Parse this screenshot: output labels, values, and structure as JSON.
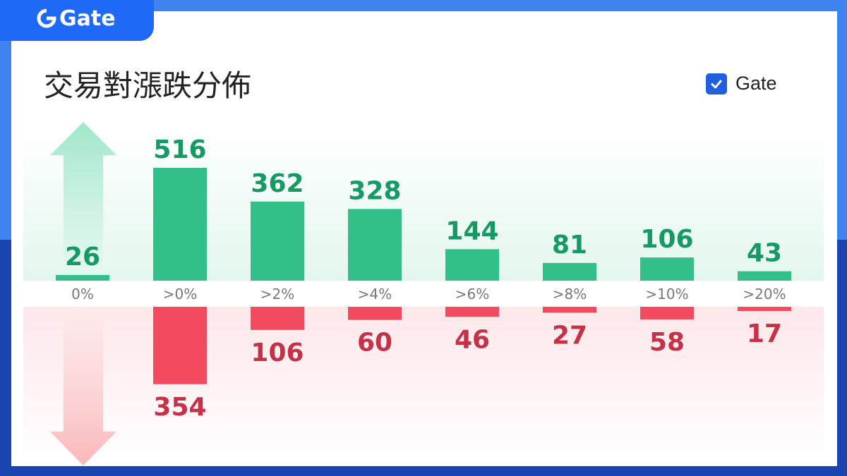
{
  "brand": {
    "logo_text": "Gate"
  },
  "title": "交易對漲跌分佈",
  "legend": {
    "label": "Gate",
    "checked": true
  },
  "colors": {
    "up": "#33bf88",
    "up_label": "#159a63",
    "down": "#f24b5f",
    "down_label": "#c73148",
    "accent": "#1e6af6"
  },
  "chart_data": {
    "type": "bar",
    "categories": [
      "0%",
      ">0%",
      ">2%",
      ">4%",
      ">6%",
      ">8%",
      ">10%",
      ">20%"
    ],
    "series": [
      {
        "name": "",
        "direction": "up",
        "values": [
          26,
          516,
          362,
          328,
          144,
          81,
          106,
          43
        ]
      },
      {
        "name": "",
        "direction": "down",
        "values": [
          null,
          354,
          106,
          60,
          46,
          27,
          58,
          17
        ]
      }
    ],
    "title": "交易對漲跌分佈",
    "xlabel": "",
    "ylabel": "",
    "grid": false,
    "legend_position": "top-right"
  }
}
